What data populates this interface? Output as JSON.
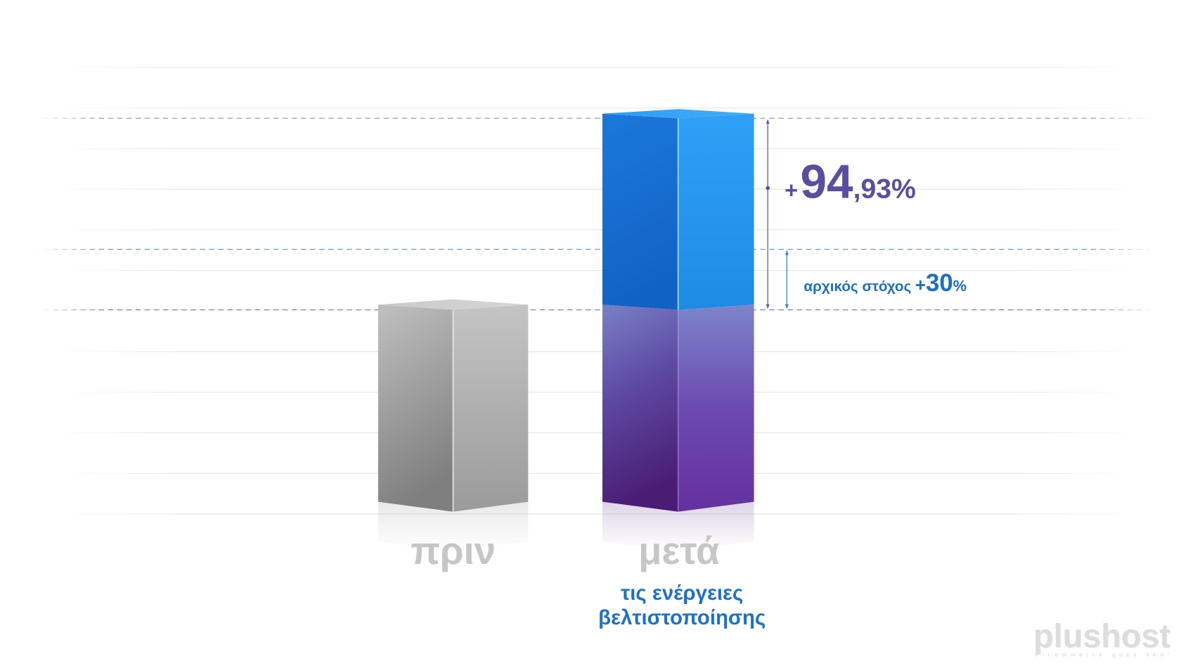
{
  "chart_data": {
    "type": "bar",
    "categories": [
      "πριν",
      "μετά"
    ],
    "values": [
      100,
      194.93
    ],
    "target": 130,
    "category_notes": [
      [],
      [
        "τις ενέργειες",
        "βελτιστοποίησης"
      ]
    ],
    "annotations": {
      "increase": {
        "plus": "+",
        "whole": "94",
        "fraction": ",93%"
      },
      "target": {
        "text": "αρχικός στόχος",
        "plus": "+",
        "whole": "30",
        "unit": "%"
      }
    },
    "colors": {
      "before": "#a9a9a9",
      "after_base": "#5b3a9a",
      "after_gain": "#1e86e2",
      "increase": "#5b4ea0",
      "target": "#1b6fc4",
      "category_label": "#c6c6c6",
      "note": "#1b73c8"
    }
  },
  "logo": {
    "name": "plushost",
    "tagline": "e-commerce goes 360°"
  }
}
